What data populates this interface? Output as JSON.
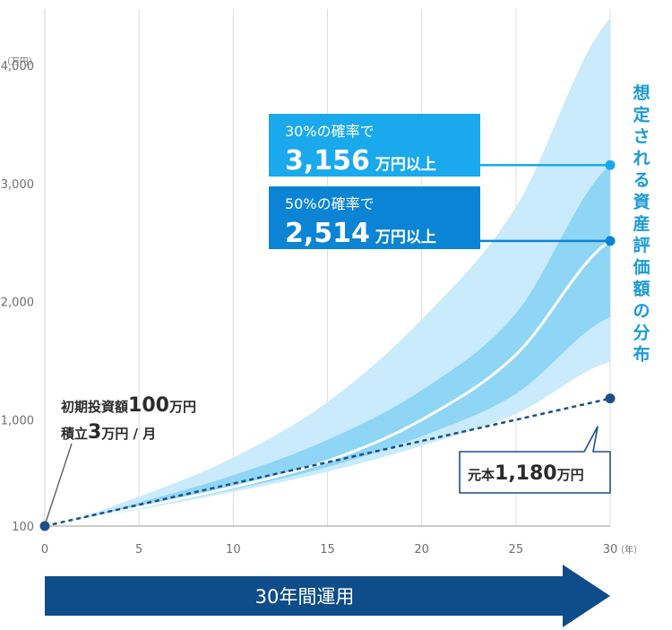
{
  "chart_data": {
    "type": "area",
    "x_ticks": [
      "0",
      "5",
      "10",
      "15",
      "20",
      "25",
      "30"
    ],
    "x_unit": "（年）",
    "y_ticks": [
      "100",
      "1,000",
      "2,000",
      "3,000",
      "4,000"
    ],
    "y_unit": "（万円）",
    "xlim": [
      0,
      30
    ],
    "ylim": [
      100,
      4000
    ],
    "grid": "vertical",
    "series": [
      {
        "name": "",
        "x": [
          0,
          5,
          10,
          15,
          20,
          25,
          30
        ],
        "y": [
          100,
          260,
          430,
          650,
          1000,
          1550,
          2514
        ]
      },
      {
        "name": "元本",
        "x": [
          0,
          30
        ],
        "y": [
          100,
          1180
        ]
      }
    ],
    "bands": [
      {
        "x": [
          0,
          5,
          10,
          15,
          20,
          25,
          30
        ],
        "low": [
          100,
          240,
          390,
          560,
          780,
          1050,
          1490
        ],
        "high": [
          100,
          350,
          680,
          1150,
          1850,
          2800,
          4400
        ]
      },
      {
        "x": [
          0,
          5,
          10,
          15,
          20,
          25,
          30
        ],
        "low": [
          100,
          250,
          410,
          600,
          860,
          1220,
          1870
        ],
        "high": [
          100,
          300,
          530,
          830,
          1250,
          1900,
          3156
        ]
      }
    ],
    "markers": [
      {
        "x": 30,
        "y": 3156
      },
      {
        "x": 30,
        "y": 2514
      },
      {
        "x": 30,
        "y": 1180
      },
      {
        "x": 0,
        "y": 100
      }
    ],
    "colors": {
      "outer_band": "#c9ebfb",
      "inner_band": "#8fd5f5",
      "median_line": "#ffffff",
      "principal_line": "#1c4f8a",
      "callout_30": "#1aa9ec",
      "callout_50": "#0c84d6",
      "marker_light": "#1aa9ec",
      "marker_mid": "#0c84d6",
      "marker_dark": "#1c4f8a",
      "arrow": "#0f4c8a",
      "vertical_title": "#1a9ad7"
    }
  },
  "annotations": {
    "initial_prefix": "初期投資額",
    "initial_value": "100",
    "initial_unit": "万円",
    "monthly_prefix": "積立",
    "monthly_value": "3",
    "monthly_unit": "万円 / 月",
    "callout_30_line1": "30%の確率で",
    "callout_30_value": "3,156",
    "callout_30_unit": "万円以上",
    "callout_50_line1": "50%の確率で",
    "callout_50_value": "2,514",
    "callout_50_unit": "万円以上",
    "principal_prefix": "元本",
    "principal_value": "1,180",
    "principal_unit": "万円"
  },
  "vertical_title": "想定される資産評価額の分布",
  "arrow_label": "30年間運用"
}
